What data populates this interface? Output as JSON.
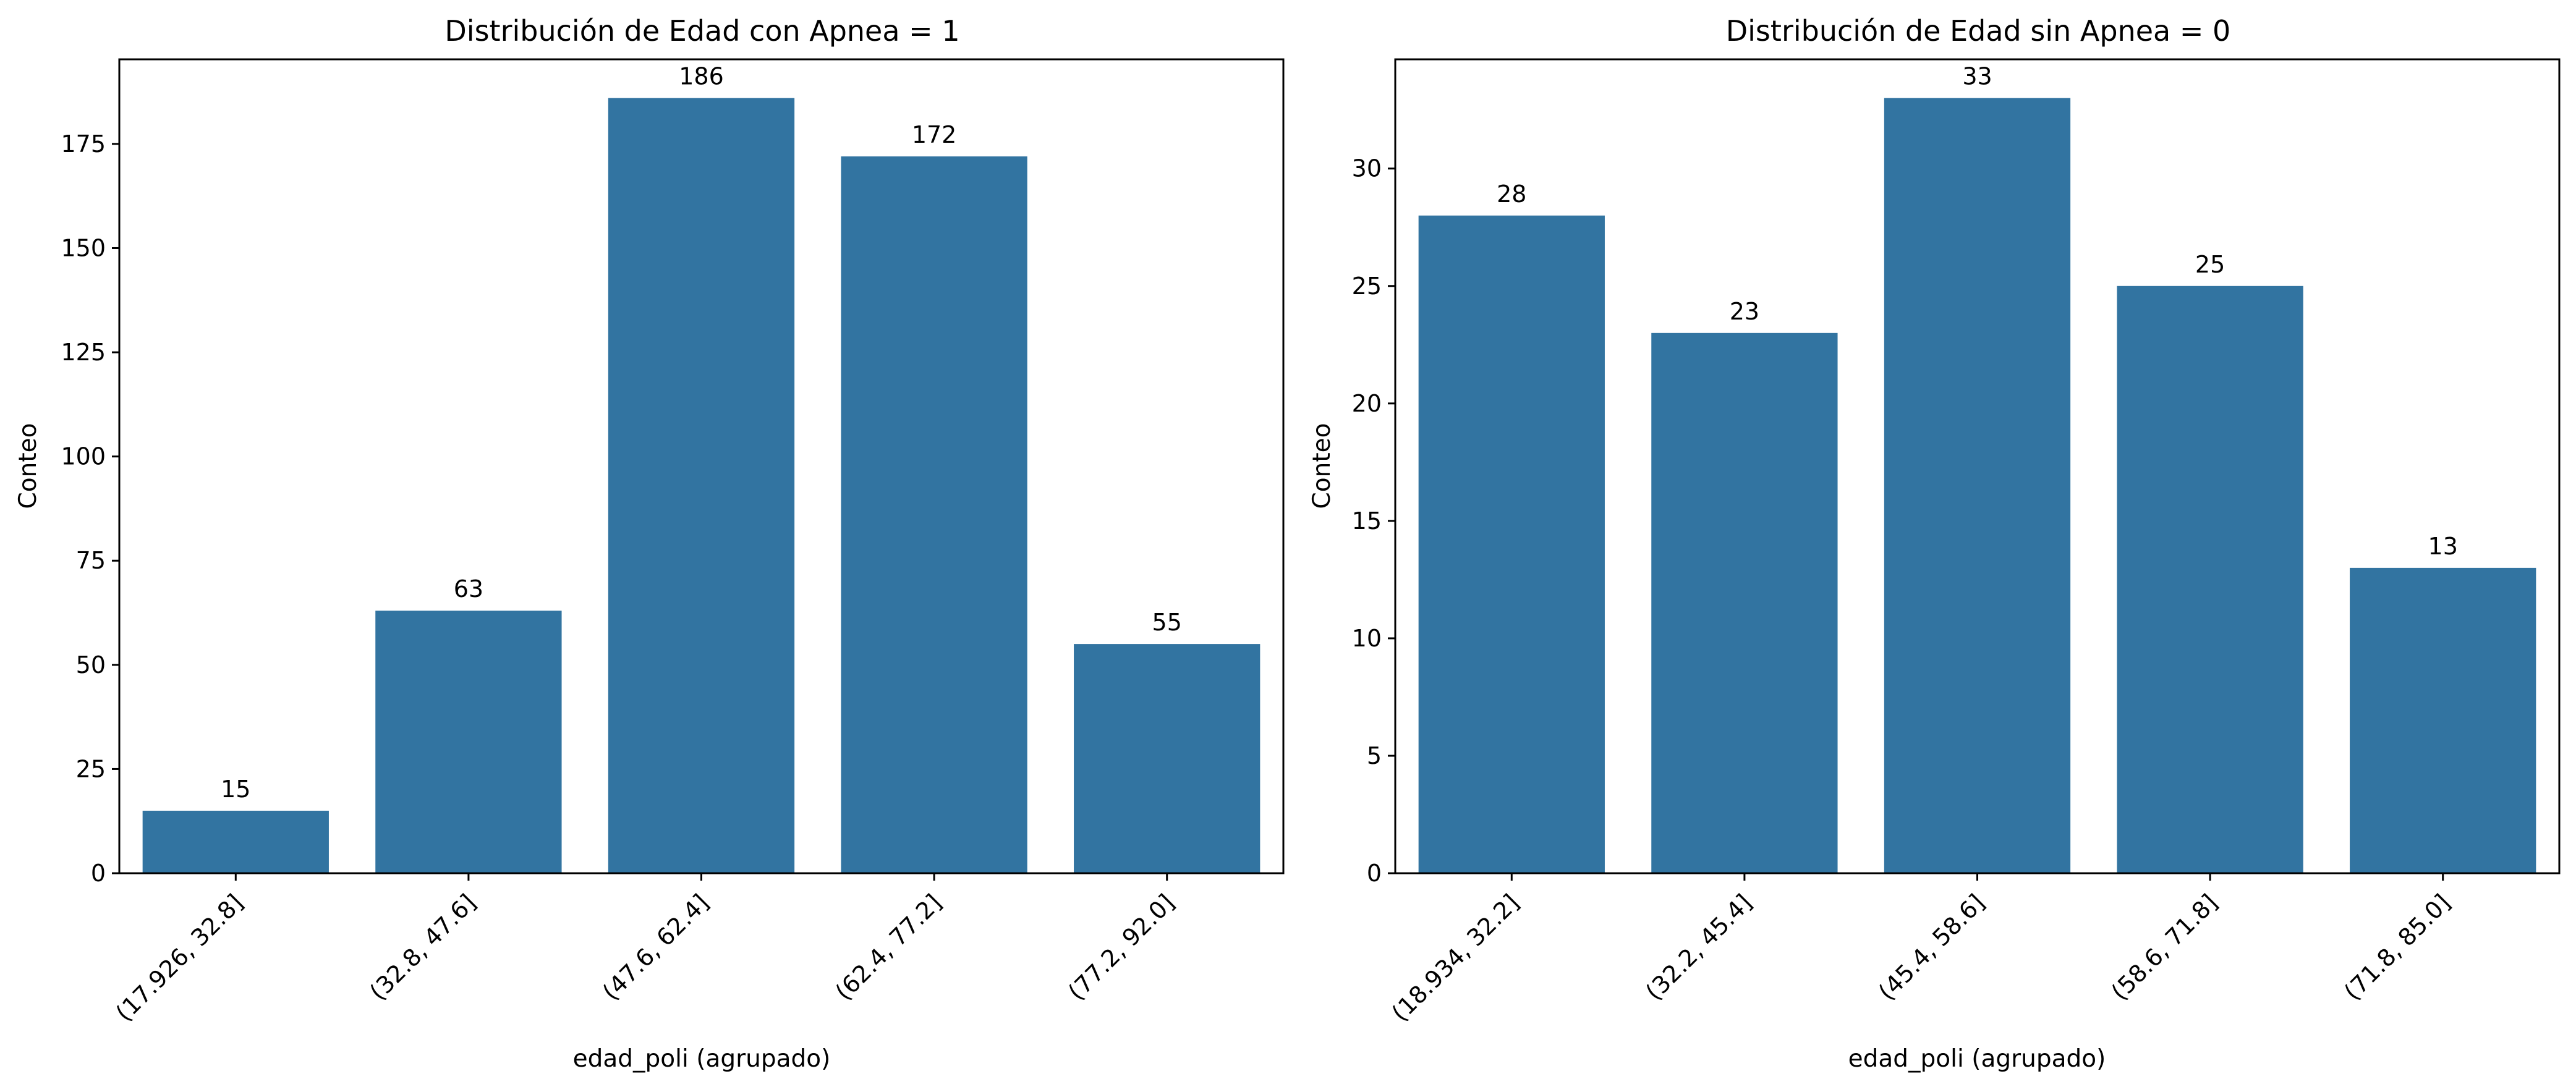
{
  "chart_data": [
    {
      "type": "bar",
      "title": "Distribución de Edad con Apnea = 1",
      "xlabel": "edad_poli (agrupado)",
      "ylabel": "Conteo",
      "categories": [
        "(17.926, 32.8]",
        "(32.8, 47.6]",
        "(47.6, 62.4]",
        "(62.4, 77.2]",
        "(77.2, 92.0]"
      ],
      "values": [
        15,
        63,
        186,
        172,
        55
      ],
      "value_labels": [
        "15",
        "63",
        "186",
        "172",
        "55"
      ],
      "ylim": [
        0,
        195.3
      ],
      "yticks": [
        0,
        25,
        50,
        75,
        100,
        125,
        150,
        175
      ],
      "ytick_labels": [
        "0",
        "25",
        "50",
        "75",
        "100",
        "125",
        "150",
        "175"
      ],
      "grid": false,
      "bar_color": "#3274a1"
    },
    {
      "type": "bar",
      "title": "Distribución de Edad sin Apnea = 0",
      "xlabel": "edad_poli (agrupado)",
      "ylabel": "Conteo",
      "categories": [
        "(18.934, 32.2]",
        "(32.2, 45.4]",
        "(45.4, 58.6]",
        "(58.6, 71.8]",
        "(71.8, 85.0]"
      ],
      "values": [
        28,
        23,
        33,
        25,
        13
      ],
      "value_labels": [
        "28",
        "23",
        "33",
        "25",
        "13"
      ],
      "ylim": [
        0,
        34.65
      ],
      "yticks": [
        0,
        5,
        10,
        15,
        20,
        25,
        30
      ],
      "ytick_labels": [
        "0",
        "5",
        "10",
        "15",
        "20",
        "25",
        "30"
      ],
      "grid": false,
      "bar_color": "#3274a1"
    }
  ]
}
